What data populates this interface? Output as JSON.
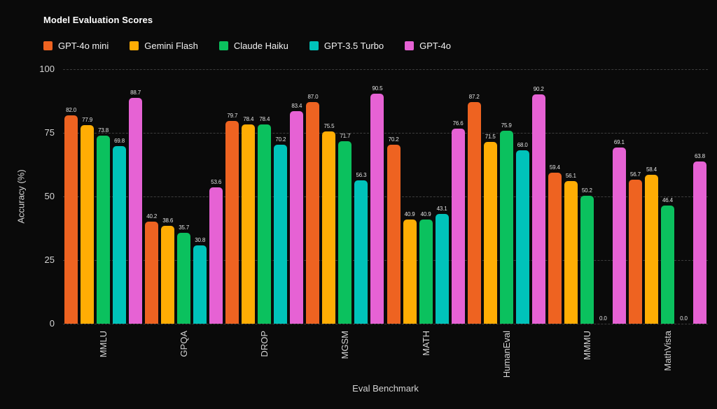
{
  "header": {
    "title": "Model Evaluation Scores"
  },
  "axes": {
    "xlabel": "Eval Benchmark",
    "ylabel": "Accuracy (%)"
  },
  "colors": {
    "background": "#0a0a0a",
    "grid": "#3d3d3d",
    "axis_text": "#d4d4d4",
    "title_text": "#ffffff",
    "value_label_text": "#e2e2e2"
  },
  "chart_data": {
    "type": "bar",
    "title": "Model Evaluation Scores",
    "xlabel": "Eval Benchmark",
    "ylabel": "Accuracy (%)",
    "ylim": [
      0,
      100
    ],
    "yticks": [
      0,
      25,
      50,
      75,
      100
    ],
    "grid": "horizontal-dashed",
    "legend_position": "top-left",
    "value_label_format": "one decimal above each bar",
    "categories": [
      "MMLU",
      "GPQA",
      "DROP",
      "MGSM",
      "MATH",
      "HumanEval",
      "MMMU",
      "MathVista"
    ],
    "series": [
      {
        "name": "GPT-4o mini",
        "color": "#EE6321",
        "values": [
          82.0,
          40.2,
          79.7,
          87.0,
          70.2,
          87.2,
          59.4,
          56.7
        ]
      },
      {
        "name": "Gemini Flash",
        "color": "#FFAD04",
        "values": [
          77.9,
          38.6,
          78.4,
          75.5,
          40.9,
          71.5,
          56.1,
          58.4
        ]
      },
      {
        "name": "Claude Haiku",
        "color": "#0BC15E",
        "values": [
          73.8,
          35.7,
          78.4,
          71.7,
          40.9,
          75.9,
          50.2,
          46.4
        ]
      },
      {
        "name": "GPT-3.5 Turbo",
        "color": "#00C3BA",
        "values": [
          69.8,
          30.8,
          70.2,
          56.3,
          43.1,
          68.0,
          0.0,
          0.0
        ]
      },
      {
        "name": "GPT-4o",
        "color": "#E662D4",
        "values": [
          88.7,
          53.6,
          83.4,
          90.5,
          76.6,
          90.2,
          69.1,
          63.8
        ]
      }
    ]
  }
}
